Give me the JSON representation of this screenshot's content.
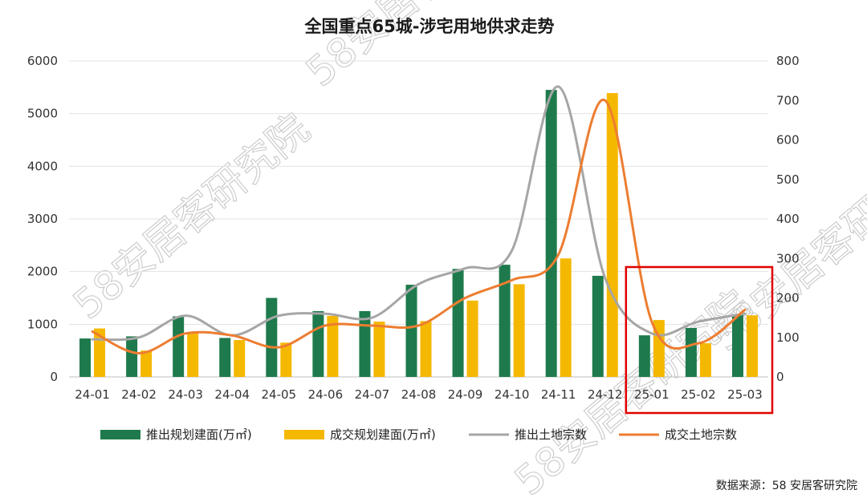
{
  "chart_data": {
    "type": "bar",
    "title": "全国重点65城-涉宅用地供求走势",
    "categories": [
      "24-01",
      "24-02",
      "24-03",
      "24-04",
      "24-05",
      "24-06",
      "24-07",
      "24-08",
      "24-09",
      "24-10",
      "24-11",
      "24-12",
      "25-01",
      "25-02",
      "25-03"
    ],
    "y_left": {
      "min": 0,
      "max": 6000,
      "ticks": [
        "0",
        "1000",
        "2000",
        "3000",
        "4000",
        "5000",
        "6000"
      ]
    },
    "y_right": {
      "min": 0,
      "max": 800,
      "ticks": [
        "0",
        "100",
        "200",
        "300",
        "400",
        "500",
        "600",
        "700",
        "800"
      ]
    },
    "series": [
      {
        "name": "推出规划建面(万㎡)",
        "type": "bar",
        "axis": "left",
        "color": "#1e7a4c",
        "values": [
          730,
          770,
          1150,
          740,
          1500,
          1250,
          1250,
          1750,
          2050,
          2130,
          5450,
          1920,
          790,
          930,
          1180
        ]
      },
      {
        "name": "成交规划建面(万㎡)",
        "type": "bar",
        "axis": "left",
        "color": "#f5b800",
        "values": [
          920,
          500,
          850,
          700,
          650,
          1160,
          1050,
          1060,
          1450,
          1760,
          2250,
          5390,
          1080,
          640,
          1170
        ]
      },
      {
        "name": "推出土地宗数",
        "type": "line",
        "axis": "right",
        "color": "#a6a6a6",
        "values": [
          95,
          100,
          155,
          105,
          155,
          160,
          150,
          235,
          275,
          320,
          735,
          250,
          110,
          140,
          160
        ]
      },
      {
        "name": "成交土地宗数",
        "type": "line",
        "axis": "right",
        "color": "#ed7d31",
        "values": [
          115,
          60,
          110,
          105,
          75,
          130,
          130,
          130,
          200,
          245,
          310,
          700,
          140,
          85,
          170
        ]
      }
    ],
    "highlight_range": [
      "25-01",
      "25-03"
    ],
    "highlight_color": "#e00000",
    "grid": true,
    "legend_position": "bottom"
  },
  "source": "数据来源：58 安居客研究院",
  "watermark": "58安居客研究院"
}
